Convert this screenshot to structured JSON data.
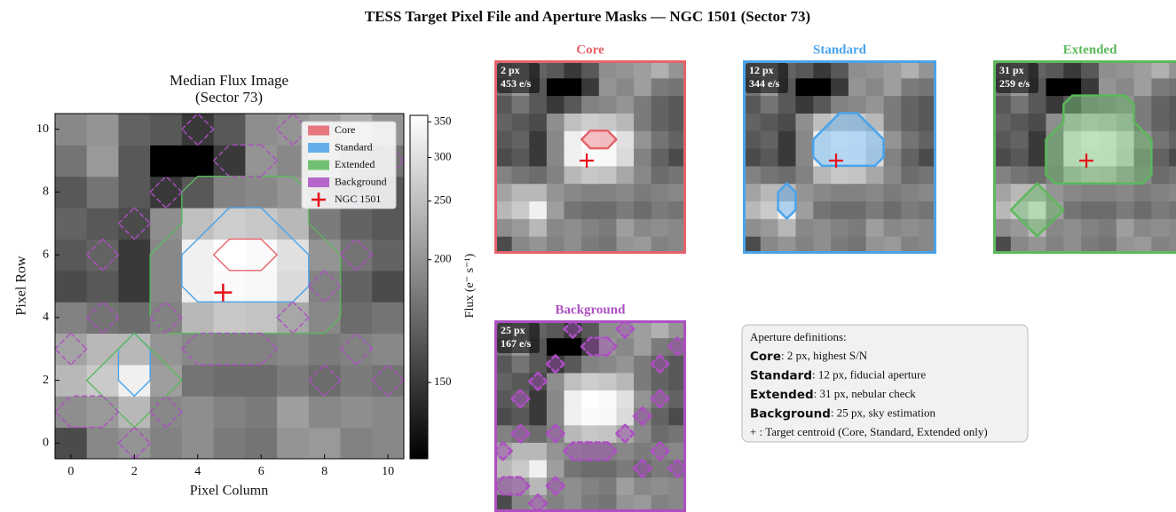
{
  "title": "TESS Target Pixel File and Aperture Masks — NGC 1501 (Sector 73)",
  "chart_data": {
    "type": "heatmap",
    "title": "Median Flux Image",
    "subtitle": "(Sector 73)",
    "x_label": "Pixel Column",
    "y_label": "Pixel Row",
    "colorbar_label": "Flux (e⁻ s⁻¹)",
    "xlim": [
      -0.5,
      10.5
    ],
    "ylim": [
      -0.5,
      10.5
    ],
    "xticks": [
      0,
      2,
      4,
      6,
      8,
      10
    ],
    "yticks": [
      0,
      2,
      4,
      6,
      8,
      10
    ],
    "clim": [
      145,
      360
    ],
    "cticks": [
      150,
      200,
      250,
      300,
      350
    ],
    "color_norm": {
      "type": "power",
      "gamma": 0.4
    },
    "colormap": "gray",
    "legend": "upper right",
    "values": [
      [
        155,
        190,
        200,
        185,
        195,
        180,
        175,
        200,
        205,
        185,
        190
      ],
      [
        195,
        205,
        240,
        190,
        195,
        185,
        180,
        210,
        190,
        195,
        190
      ],
      [
        240,
        265,
        330,
        210,
        175,
        170,
        170,
        180,
        170,
        180,
        175
      ],
      [
        215,
        240,
        240,
        200,
        190,
        185,
        185,
        190,
        180,
        185,
        190
      ],
      [
        185,
        175,
        170,
        185,
        240,
        260,
        255,
        220,
        190,
        170,
        175
      ],
      [
        155,
        160,
        150,
        190,
        330,
        350,
        345,
        290,
        185,
        165,
        155
      ],
      [
        160,
        165,
        150,
        190,
        330,
        360,
        350,
        300,
        200,
        175,
        165
      ],
      [
        165,
        160,
        155,
        195,
        250,
        270,
        260,
        240,
        180,
        165,
        160
      ],
      [
        160,
        175,
        160,
        150,
        160,
        185,
        190,
        200,
        180,
        165,
        160
      ],
      [
        175,
        205,
        160,
        145,
        145,
        150,
        200,
        190,
        210,
        180,
        175
      ],
      [
        190,
        200,
        165,
        160,
        150,
        160,
        195,
        200,
        210,
        230,
        200
      ]
    ],
    "apertures": [
      {
        "name": "Core",
        "color": "#e5636b",
        "linestyle": "solid",
        "pixels": [
          [
            5,
            6
          ],
          [
            6,
            6
          ]
        ]
      },
      {
        "name": "Standard",
        "color": "#4aa3ea",
        "linestyle": "solid",
        "pixels": [
          [
            4,
            5
          ],
          [
            5,
            5
          ],
          [
            6,
            5
          ],
          [
            7,
            5
          ],
          [
            4,
            6
          ],
          [
            5,
            6
          ],
          [
            6,
            6
          ],
          [
            7,
            6
          ],
          [
            5,
            7
          ],
          [
            6,
            7
          ],
          [
            2,
            2
          ],
          [
            2,
            3
          ]
        ]
      },
      {
        "name": "Extended",
        "color": "#5cb85c",
        "linestyle": "solid",
        "pixels": [
          [
            5,
            8
          ],
          [
            6,
            8
          ],
          [
            4,
            8
          ],
          [
            7,
            8
          ],
          [
            4,
            7
          ],
          [
            5,
            7
          ],
          [
            6,
            7
          ],
          [
            7,
            7
          ],
          [
            3,
            6
          ],
          [
            4,
            6
          ],
          [
            5,
            6
          ],
          [
            6,
            6
          ],
          [
            7,
            6
          ],
          [
            8,
            6
          ],
          [
            3,
            5
          ],
          [
            4,
            5
          ],
          [
            5,
            5
          ],
          [
            6,
            5
          ],
          [
            7,
            5
          ],
          [
            8,
            5
          ],
          [
            3,
            4
          ],
          [
            4,
            4
          ],
          [
            5,
            4
          ],
          [
            6,
            4
          ],
          [
            7,
            4
          ],
          [
            8,
            4
          ],
          [
            2,
            1
          ],
          [
            1,
            2
          ],
          [
            2,
            2
          ],
          [
            3,
            2
          ],
          [
            2,
            3
          ]
        ]
      },
      {
        "name": "Background",
        "color": "#ad4fc3",
        "linestyle": "dashed",
        "pixels": [
          [
            6,
            9
          ],
          [
            5,
            9
          ],
          [
            3,
            8
          ],
          [
            2,
            7
          ],
          [
            9,
            8
          ],
          [
            1,
            6
          ],
          [
            9,
            6
          ],
          [
            8,
            5
          ],
          [
            1,
            4
          ],
          [
            3,
            4
          ],
          [
            7,
            4
          ],
          [
            0,
            3
          ],
          [
            0,
            1
          ],
          [
            1,
            1
          ],
          [
            3,
            1
          ],
          [
            2,
            0
          ],
          [
            4,
            3
          ],
          [
            5,
            3
          ],
          [
            6,
            3
          ],
          [
            9,
            3
          ],
          [
            10,
            2
          ],
          [
            8,
            2
          ],
          [
            4,
            10
          ],
          [
            7,
            10
          ],
          [
            10,
            9
          ]
        ]
      }
    ],
    "target": {
      "name": "NGC 1501",
      "x": 4.8,
      "y": 4.8,
      "color": "#e8121a"
    }
  },
  "panels": [
    {
      "title": "Core",
      "stats": [
        "2 px",
        "453 e/s"
      ],
      "show_target": true
    },
    {
      "title": "Standard",
      "stats": [
        "12 px",
        "344 e/s"
      ],
      "show_target": true
    },
    {
      "title": "Extended",
      "stats": [
        "31 px",
        "259 e/s"
      ],
      "show_target": true
    },
    {
      "title": "Background",
      "stats": [
        "25 px",
        "167 e/s"
      ],
      "show_target": false
    }
  ],
  "info_box": {
    "heading": "Aperture definitions:",
    "lines": [
      {
        "term": "Core",
        "text": ": 2 px, highest S/N"
      },
      {
        "term": "Standard",
        "text": ": 12 px, fiducial aperture"
      },
      {
        "term": "Extended",
        "text": ": 31 px, nebular check"
      },
      {
        "term": "Background",
        "text": ": 25 px, sky estimation"
      }
    ],
    "footer": "+ : Target centroid (Core, Standard, Extended only)"
  }
}
